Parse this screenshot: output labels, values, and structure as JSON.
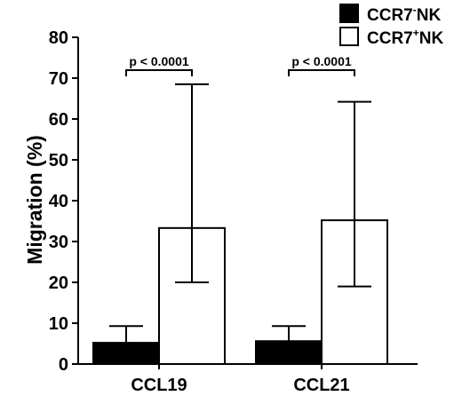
{
  "chart_data": {
    "type": "bar",
    "ylabel": "Migration (%)",
    "xlabel": "",
    "ylim": [
      0,
      80
    ],
    "yticks": [
      0,
      10,
      20,
      30,
      40,
      50,
      60,
      70,
      80
    ],
    "categories": [
      "CCL19",
      "CCL21"
    ],
    "series": [
      {
        "name": "CCR7⁻NK",
        "name_parts": {
          "base": "CCR7",
          "sup": "-",
          "suffix": "NK"
        },
        "fill": "#000000",
        "values": [
          5.2,
          5.6
        ],
        "error_low": [
          5.2,
          5.6
        ],
        "error_high": [
          9.3,
          9.3
        ]
      },
      {
        "name": "CCR7⁺NK",
        "name_parts": {
          "base": "CCR7",
          "sup": "+",
          "suffix": "NK"
        },
        "fill": "#ffffff",
        "values": [
          33.3,
          35.2
        ],
        "error_low": [
          20.0,
          19.0
        ],
        "error_high": [
          68.5,
          64.2
        ]
      }
    ],
    "annotations": [
      "p < 0.0001",
      "p < 0.0001"
    ],
    "legend_position": "top-right",
    "grid": false
  }
}
